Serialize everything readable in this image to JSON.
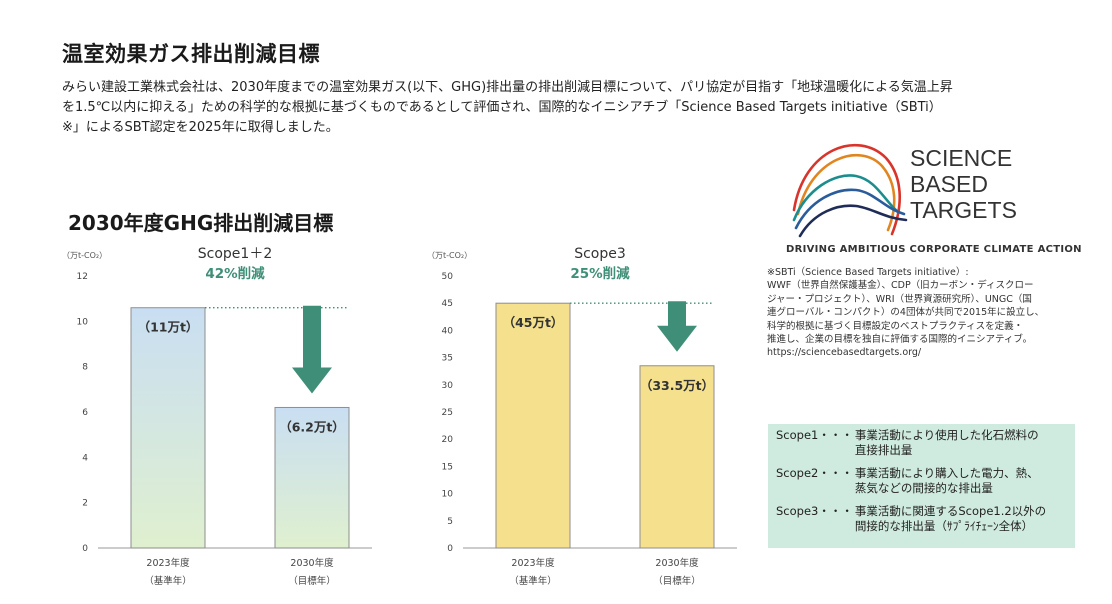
{
  "page_title": "温室効果ガス排出削減目標",
  "intro_lines": [
    "みらい建設工業株式会社は、2030年度までの温室効果ガス(以下、GHG)排出量の排出削減目標について、パリ協定が目指す「地球温暖化による気温上昇",
    "を1.5℃以内に抑える」ための科学的な根拠に基づくものであるとして評価され、国際的なイニシアチブ「Science Based Targets initiative（SBTi）",
    "※」によるSBT認定を2025年に取得しました。"
  ],
  "section_title": "2030年度GHG排出削減目標",
  "chart_data": [
    {
      "type": "bar",
      "title": "Scope1＋2",
      "subtitle": "42%削減",
      "unit_label": "（万t-CO₂）",
      "ylim": [
        0,
        12
      ],
      "yticks": [
        0,
        2,
        4,
        6,
        8,
        10,
        12
      ],
      "categories": [
        [
          "2023年度",
          "（基準年）"
        ],
        [
          "2030年度",
          "（目標年）"
        ]
      ],
      "values": [
        10.6,
        6.2
      ],
      "data_labels": [
        "（11万t）",
        "（6.2万t）"
      ],
      "style": "blue-gradient",
      "colors": {
        "top": "#c9def2",
        "bottom": "#dff0cf",
        "border": "#8e8e8e",
        "accent": "#3f8f78"
      }
    },
    {
      "type": "bar",
      "title": "Scope3",
      "subtitle": "25%削減",
      "unit_label": "（万t-CO₂）",
      "ylim": [
        0,
        50
      ],
      "yticks": [
        0,
        5,
        10,
        15,
        20,
        25,
        30,
        35,
        40,
        45,
        50
      ],
      "categories": [
        [
          "2023年度",
          "（基準年）"
        ],
        [
          "2030年度",
          "（目標年）"
        ]
      ],
      "values": [
        45,
        33.5
      ],
      "data_labels": [
        "（45万t）",
        "（33.5万t）"
      ],
      "style": "yellow",
      "colors": {
        "top": "#f5e08e",
        "bottom": "#f5e08e",
        "border": "#8e8e8e",
        "accent": "#3f8f78"
      }
    }
  ],
  "sbt_logo": {
    "line1": "SCIENCE",
    "line2": "BASED",
    "line3": "TARGETS",
    "tagline": "DRIVING AMBITIOUS CORPORATE CLIMATE ACTION"
  },
  "sbt_note_lines": [
    "※SBTi（Science Based Targets initiative）:",
    "WWF（世界自然保護基金）、CDP（旧カーボン・ディスクロー",
    "ジャー・プロジェクト）、WRI（世界資源研究所）、UNGC（国",
    "連グローバル・コンパクト）の4団体が共同で2015年に設立し、",
    "科学的根拠に基づく目標設定のベストプラクティスを定義・",
    "推進し、企業の目標を独自に評価する国際的イニシアティブ。",
    "https://sciencebasedtargets.org/"
  ],
  "scopes": [
    {
      "name": "Scope1・・・",
      "lines": [
        "事業活動により使用した化石燃料の",
        "直接排出量"
      ]
    },
    {
      "name": "Scope2・・・",
      "lines": [
        "事業活動により購入した電力、熱、",
        "蒸気などの間接的な排出量"
      ]
    },
    {
      "name": "Scope3・・・",
      "lines": [
        "事業活動に関連するScope1.2以外の",
        "間接的な排出量（ｻﾌﾟﾗｲﾁｪｰﾝ全体）"
      ]
    }
  ]
}
